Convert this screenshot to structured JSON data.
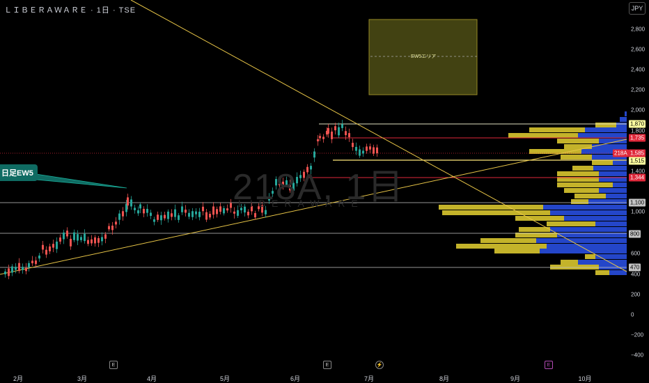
{
  "header": {
    "symbol_title": "ＬＩＢＥＲＡＷＡＲＥ · 1日 · TSE",
    "currency": "JPY"
  },
  "watermark": {
    "main": "218A, 1日",
    "sub": "LIBERAWARE"
  },
  "y_axis_labels": [
    "2,800",
    "2,600",
    "2,400",
    "2,200",
    "2,000",
    "1,800",
    "1,400",
    "1,000",
    "600",
    "400",
    "200",
    "0",
    "−200",
    "−400"
  ],
  "x_axis_labels": [
    "2月",
    "3月",
    "4月",
    "5月",
    "6月",
    "7月",
    "8月",
    "9月",
    "10月"
  ],
  "price_tags": {
    "level_1870": "1,870",
    "level_1735": "1,735",
    "symbol": "218A",
    "last_price": "1,585",
    "level_1515": "1,515",
    "level_1344": "1,344",
    "level_1100": "1,100",
    "level_800": "800",
    "level_470": "470"
  },
  "annotations": {
    "ew5_label": "日足EW5",
    "ew5_area_label": "EW5エリア"
  },
  "events": {
    "earnings_1": "E",
    "earnings_2": "E",
    "earnings_3": "E",
    "dividend": "⚡"
  },
  "colors": {
    "up": "#26a69a",
    "down": "#ef5350",
    "accent": "#e8c547",
    "vp_blue": "#2446c9",
    "vp_yellow": "#c4b32a"
  }
}
